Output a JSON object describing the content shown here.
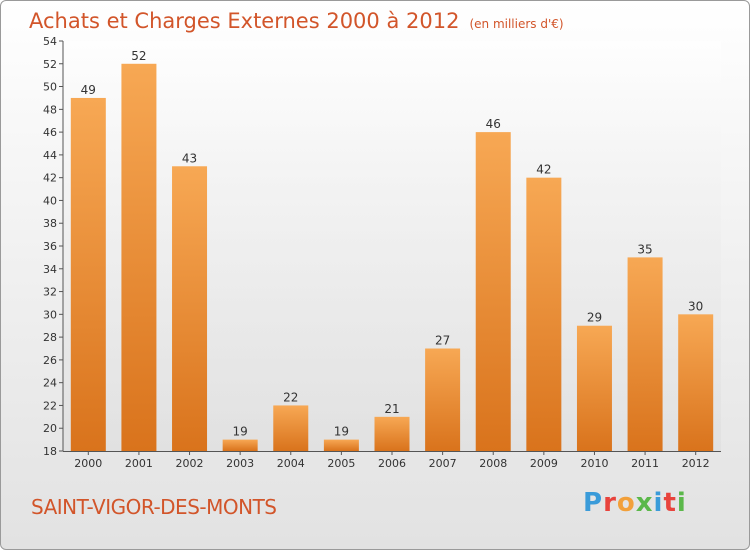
{
  "title": "Achats et Charges Externes 2000 à 2012",
  "unit": "(en milliers d'€)",
  "place": "SAINT-VIGOR-DES-MONTS",
  "logo": {
    "text": "Proxiti",
    "colors": [
      "#3a9bd9",
      "#e8433c",
      "#f2a03a",
      "#5bb84a",
      "#3a9bd9",
      "#e8433c",
      "#5bb84a"
    ]
  },
  "colors": {
    "bar_light": "#f7a854",
    "bar_dark": "#d9731c",
    "title": "#d2552a",
    "axis": "#555555"
  },
  "chart_data": {
    "type": "bar",
    "categories": [
      "2000",
      "2001",
      "2002",
      "2003",
      "2004",
      "2005",
      "2006",
      "2007",
      "2008",
      "2009",
      "2010",
      "2011",
      "2012"
    ],
    "values": [
      49,
      52,
      43,
      19,
      22,
      19,
      21,
      27,
      46,
      42,
      29,
      35,
      30
    ],
    "ylim": [
      18,
      54
    ],
    "yticks": [
      18,
      20,
      22,
      24,
      26,
      28,
      30,
      32,
      34,
      36,
      38,
      40,
      42,
      44,
      46,
      48,
      50,
      52,
      54
    ],
    "grid": false,
    "legend": "none"
  }
}
